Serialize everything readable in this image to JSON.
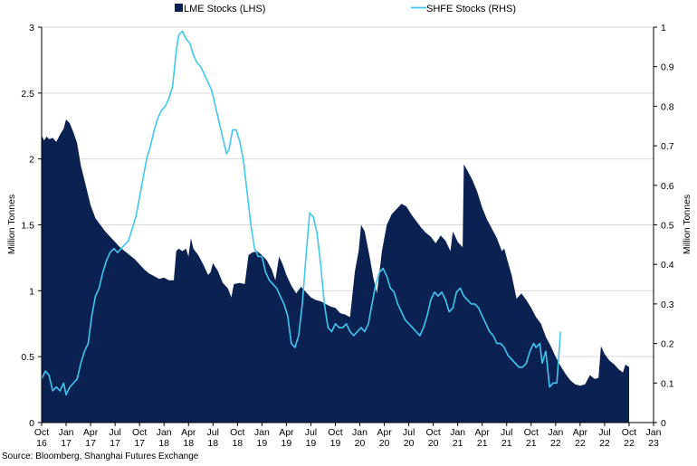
{
  "chart_data": {
    "type": "area",
    "x_labels": [
      [
        "Oct",
        "16"
      ],
      [
        "Jan",
        "17"
      ],
      [
        "Apr",
        "17"
      ],
      [
        "Jul",
        "17"
      ],
      [
        "Oct",
        "17"
      ],
      [
        "Jan",
        "18"
      ],
      [
        "Apr",
        "18"
      ],
      [
        "Jul",
        "18"
      ],
      [
        "Oct",
        "18"
      ],
      [
        "Jan",
        "19"
      ],
      [
        "Apr",
        "19"
      ],
      [
        "Jul",
        "19"
      ],
      [
        "Oct",
        "19"
      ],
      [
        "Jan",
        "20"
      ],
      [
        "Apr",
        "20"
      ],
      [
        "Jul",
        "20"
      ],
      [
        "Oct",
        "20"
      ],
      [
        "Jan",
        "21"
      ],
      [
        "Apr",
        "21"
      ],
      [
        "Jul",
        "21"
      ],
      [
        "Oct",
        "21"
      ],
      [
        "Jan",
        "22"
      ],
      [
        "Apr",
        "22"
      ],
      [
        "Jul",
        "22"
      ],
      [
        "Oct",
        "22"
      ],
      [
        "Jan",
        "23"
      ]
    ],
    "x_range": [
      0,
      25
    ],
    "y_left": {
      "label": "Million Tonnes",
      "ticks": [
        "0",
        "0.5",
        "1",
        "1.5",
        "2",
        "2.5",
        "3"
      ],
      "range": [
        0,
        3
      ]
    },
    "y_right": {
      "label": "Million Tonnes",
      "ticks": [
        "0",
        "0.1",
        "0.2",
        "0.3",
        "0.4",
        "0.5",
        "0.6",
        "0.7",
        "0.8",
        "0.9",
        "1"
      ],
      "range": [
        0,
        1
      ]
    },
    "grid": "horizontal",
    "legend_position": "top",
    "series": [
      {
        "name": "LME Stocks (LHS)",
        "kind": "area",
        "axis": "left",
        "color": "#0b2152",
        "points": [
          [
            0.0,
            2.18
          ],
          [
            0.1,
            2.14
          ],
          [
            0.2,
            2.17
          ],
          [
            0.3,
            2.15
          ],
          [
            0.45,
            2.16
          ],
          [
            0.6,
            2.13
          ],
          [
            0.8,
            2.2
          ],
          [
            0.9,
            2.23
          ],
          [
            1.0,
            2.3
          ],
          [
            1.15,
            2.27
          ],
          [
            1.3,
            2.2
          ],
          [
            1.45,
            2.12
          ],
          [
            1.6,
            1.95
          ],
          [
            1.8,
            1.8
          ],
          [
            2.0,
            1.65
          ],
          [
            2.2,
            1.55
          ],
          [
            2.4,
            1.5
          ],
          [
            2.6,
            1.45
          ],
          [
            2.8,
            1.41
          ],
          [
            3.0,
            1.37
          ],
          [
            3.2,
            1.33
          ],
          [
            3.4,
            1.3
          ],
          [
            3.6,
            1.27
          ],
          [
            3.8,
            1.24
          ],
          [
            4.0,
            1.2
          ],
          [
            4.2,
            1.16
          ],
          [
            4.4,
            1.13
          ],
          [
            4.6,
            1.11
          ],
          [
            4.8,
            1.09
          ],
          [
            5.0,
            1.1
          ],
          [
            5.2,
            1.08
          ],
          [
            5.4,
            1.08
          ],
          [
            5.5,
            1.3
          ],
          [
            5.6,
            1.32
          ],
          [
            5.75,
            1.3
          ],
          [
            5.9,
            1.32
          ],
          [
            6.0,
            1.26
          ],
          [
            6.1,
            1.4
          ],
          [
            6.2,
            1.32
          ],
          [
            6.4,
            1.27
          ],
          [
            6.6,
            1.2
          ],
          [
            6.8,
            1.12
          ],
          [
            6.9,
            1.14
          ],
          [
            7.0,
            1.21
          ],
          [
            7.2,
            1.15
          ],
          [
            7.4,
            1.06
          ],
          [
            7.6,
            1.02
          ],
          [
            7.75,
            0.95
          ],
          [
            7.85,
            1.05
          ],
          [
            8.1,
            1.06
          ],
          [
            8.3,
            1.05
          ],
          [
            8.45,
            1.27
          ],
          [
            8.6,
            1.29
          ],
          [
            8.8,
            1.3
          ],
          [
            9.0,
            1.27
          ],
          [
            9.2,
            1.23
          ],
          [
            9.4,
            1.16
          ],
          [
            9.55,
            1.08
          ],
          [
            9.7,
            1.26
          ],
          [
            9.85,
            1.2
          ],
          [
            10.0,
            1.12
          ],
          [
            10.2,
            1.04
          ],
          [
            10.4,
            0.98
          ],
          [
            10.6,
            1.03
          ],
          [
            10.8,
            0.99
          ],
          [
            11.0,
            0.95
          ],
          [
            11.2,
            0.93
          ],
          [
            11.4,
            0.92
          ],
          [
            11.6,
            0.9
          ],
          [
            11.8,
            0.88
          ],
          [
            12.0,
            0.87
          ],
          [
            12.2,
            0.83
          ],
          [
            12.4,
            0.82
          ],
          [
            12.6,
            0.8
          ],
          [
            12.8,
            1.15
          ],
          [
            12.95,
            1.3
          ],
          [
            13.05,
            1.5
          ],
          [
            13.2,
            1.45
          ],
          [
            13.4,
            1.26
          ],
          [
            13.55,
            1.1
          ],
          [
            13.7,
            0.98
          ],
          [
            13.9,
            1.3
          ],
          [
            14.1,
            1.5
          ],
          [
            14.3,
            1.58
          ],
          [
            14.5,
            1.62
          ],
          [
            14.7,
            1.66
          ],
          [
            14.9,
            1.64
          ],
          [
            15.1,
            1.58
          ],
          [
            15.3,
            1.53
          ],
          [
            15.5,
            1.48
          ],
          [
            15.7,
            1.44
          ],
          [
            15.9,
            1.41
          ],
          [
            16.1,
            1.36
          ],
          [
            16.3,
            1.42
          ],
          [
            16.5,
            1.38
          ],
          [
            16.7,
            1.3
          ],
          [
            16.8,
            1.45
          ],
          [
            17.0,
            1.37
          ],
          [
            17.2,
            1.33
          ],
          [
            17.25,
            1.96
          ],
          [
            17.4,
            1.91
          ],
          [
            17.6,
            1.84
          ],
          [
            17.8,
            1.75
          ],
          [
            18.0,
            1.63
          ],
          [
            18.2,
            1.54
          ],
          [
            18.4,
            1.47
          ],
          [
            18.6,
            1.4
          ],
          [
            18.8,
            1.3
          ],
          [
            18.9,
            1.32
          ],
          [
            19.0,
            1.25
          ],
          [
            19.2,
            1.12
          ],
          [
            19.4,
            0.94
          ],
          [
            19.6,
            0.98
          ],
          [
            19.8,
            0.93
          ],
          [
            20.0,
            0.87
          ],
          [
            20.2,
            0.8
          ],
          [
            20.4,
            0.75
          ],
          [
            20.6,
            0.65
          ],
          [
            20.8,
            0.58
          ],
          [
            21.0,
            0.5
          ],
          [
            21.2,
            0.43
          ],
          [
            21.4,
            0.37
          ],
          [
            21.6,
            0.32
          ],
          [
            21.8,
            0.29
          ],
          [
            22.0,
            0.28
          ],
          [
            22.2,
            0.29
          ],
          [
            22.4,
            0.36
          ],
          [
            22.6,
            0.33
          ],
          [
            22.75,
            0.34
          ],
          [
            22.85,
            0.58
          ],
          [
            23.0,
            0.52
          ],
          [
            23.2,
            0.47
          ],
          [
            23.4,
            0.44
          ],
          [
            23.6,
            0.4
          ],
          [
            23.75,
            0.38
          ],
          [
            23.85,
            0.44
          ],
          [
            24.0,
            0.42
          ]
        ]
      },
      {
        "name": "SHFE Stocks (RHS)",
        "kind": "line",
        "axis": "right",
        "color": "#3ec8f0",
        "points": [
          [
            0.0,
            0.11
          ],
          [
            0.15,
            0.13
          ],
          [
            0.3,
            0.12
          ],
          [
            0.45,
            0.08
          ],
          [
            0.6,
            0.09
          ],
          [
            0.75,
            0.08
          ],
          [
            0.9,
            0.1
          ],
          [
            1.0,
            0.07
          ],
          [
            1.15,
            0.09
          ],
          [
            1.3,
            0.1
          ],
          [
            1.45,
            0.11
          ],
          [
            1.6,
            0.15
          ],
          [
            1.75,
            0.18
          ],
          [
            1.9,
            0.2
          ],
          [
            2.05,
            0.27
          ],
          [
            2.2,
            0.32
          ],
          [
            2.35,
            0.34
          ],
          [
            2.5,
            0.38
          ],
          [
            2.65,
            0.41
          ],
          [
            2.8,
            0.43
          ],
          [
            2.95,
            0.44
          ],
          [
            3.1,
            0.43
          ],
          [
            3.25,
            0.44
          ],
          [
            3.4,
            0.45
          ],
          [
            3.55,
            0.46
          ],
          [
            3.7,
            0.49
          ],
          [
            3.85,
            0.52
          ],
          [
            4.0,
            0.57
          ],
          [
            4.15,
            0.62
          ],
          [
            4.3,
            0.67
          ],
          [
            4.45,
            0.7
          ],
          [
            4.6,
            0.74
          ],
          [
            4.75,
            0.77
          ],
          [
            4.9,
            0.79
          ],
          [
            5.05,
            0.8
          ],
          [
            5.2,
            0.82
          ],
          [
            5.35,
            0.85
          ],
          [
            5.5,
            0.94
          ],
          [
            5.6,
            0.98
          ],
          [
            5.75,
            0.99
          ],
          [
            5.9,
            0.97
          ],
          [
            6.05,
            0.96
          ],
          [
            6.2,
            0.93
          ],
          [
            6.35,
            0.91
          ],
          [
            6.5,
            0.9
          ],
          [
            6.65,
            0.88
          ],
          [
            6.8,
            0.86
          ],
          [
            6.95,
            0.84
          ],
          [
            7.1,
            0.8
          ],
          [
            7.25,
            0.76
          ],
          [
            7.4,
            0.72
          ],
          [
            7.55,
            0.68
          ],
          [
            7.65,
            0.69
          ],
          [
            7.8,
            0.74
          ],
          [
            7.95,
            0.74
          ],
          [
            8.1,
            0.71
          ],
          [
            8.25,
            0.66
          ],
          [
            8.4,
            0.58
          ],
          [
            8.55,
            0.5
          ],
          [
            8.7,
            0.44
          ],
          [
            8.85,
            0.42
          ],
          [
            9.0,
            0.42
          ],
          [
            9.15,
            0.38
          ],
          [
            9.3,
            0.36
          ],
          [
            9.45,
            0.35
          ],
          [
            9.6,
            0.34
          ],
          [
            9.75,
            0.32
          ],
          [
            9.9,
            0.3
          ],
          [
            10.05,
            0.27
          ],
          [
            10.2,
            0.2
          ],
          [
            10.35,
            0.19
          ],
          [
            10.5,
            0.22
          ],
          [
            10.65,
            0.3
          ],
          [
            10.8,
            0.42
          ],
          [
            10.95,
            0.53
          ],
          [
            11.1,
            0.52
          ],
          [
            11.25,
            0.48
          ],
          [
            11.4,
            0.4
          ],
          [
            11.55,
            0.3
          ],
          [
            11.7,
            0.24
          ],
          [
            11.85,
            0.23
          ],
          [
            12.0,
            0.25
          ],
          [
            12.15,
            0.24
          ],
          [
            12.3,
            0.24
          ],
          [
            12.45,
            0.25
          ],
          [
            12.6,
            0.23
          ],
          [
            12.75,
            0.22
          ],
          [
            12.9,
            0.23
          ],
          [
            13.05,
            0.24
          ],
          [
            13.2,
            0.23
          ],
          [
            13.35,
            0.25
          ],
          [
            13.5,
            0.3
          ],
          [
            13.65,
            0.35
          ],
          [
            13.8,
            0.38
          ],
          [
            13.95,
            0.39
          ],
          [
            14.1,
            0.37
          ],
          [
            14.25,
            0.34
          ],
          [
            14.4,
            0.33
          ],
          [
            14.55,
            0.3
          ],
          [
            14.7,
            0.28
          ],
          [
            14.85,
            0.26
          ],
          [
            15.0,
            0.25
          ],
          [
            15.15,
            0.24
          ],
          [
            15.3,
            0.23
          ],
          [
            15.45,
            0.22
          ],
          [
            15.6,
            0.24
          ],
          [
            15.75,
            0.27
          ],
          [
            15.9,
            0.31
          ],
          [
            16.05,
            0.33
          ],
          [
            16.2,
            0.32
          ],
          [
            16.35,
            0.33
          ],
          [
            16.5,
            0.31
          ],
          [
            16.65,
            0.28
          ],
          [
            16.8,
            0.29
          ],
          [
            16.95,
            0.33
          ],
          [
            17.1,
            0.34
          ],
          [
            17.25,
            0.32
          ],
          [
            17.4,
            0.31
          ],
          [
            17.55,
            0.3
          ],
          [
            17.7,
            0.3
          ],
          [
            17.85,
            0.29
          ],
          [
            18.0,
            0.27
          ],
          [
            18.15,
            0.25
          ],
          [
            18.3,
            0.23
          ],
          [
            18.45,
            0.22
          ],
          [
            18.6,
            0.2
          ],
          [
            18.75,
            0.2
          ],
          [
            18.9,
            0.19
          ],
          [
            19.05,
            0.17
          ],
          [
            19.2,
            0.16
          ],
          [
            19.35,
            0.15
          ],
          [
            19.5,
            0.14
          ],
          [
            19.65,
            0.14
          ],
          [
            19.8,
            0.15
          ],
          [
            19.95,
            0.18
          ],
          [
            20.1,
            0.2
          ],
          [
            20.2,
            0.19
          ],
          [
            20.35,
            0.2
          ],
          [
            20.45,
            0.15
          ],
          [
            20.6,
            0.18
          ],
          [
            20.75,
            0.09
          ],
          [
            20.9,
            0.1
          ],
          [
            21.05,
            0.1
          ],
          [
            21.2,
            0.23
          ]
        ]
      }
    ]
  },
  "source": "Source: Bloomberg, Shanghai Futures Exchange"
}
